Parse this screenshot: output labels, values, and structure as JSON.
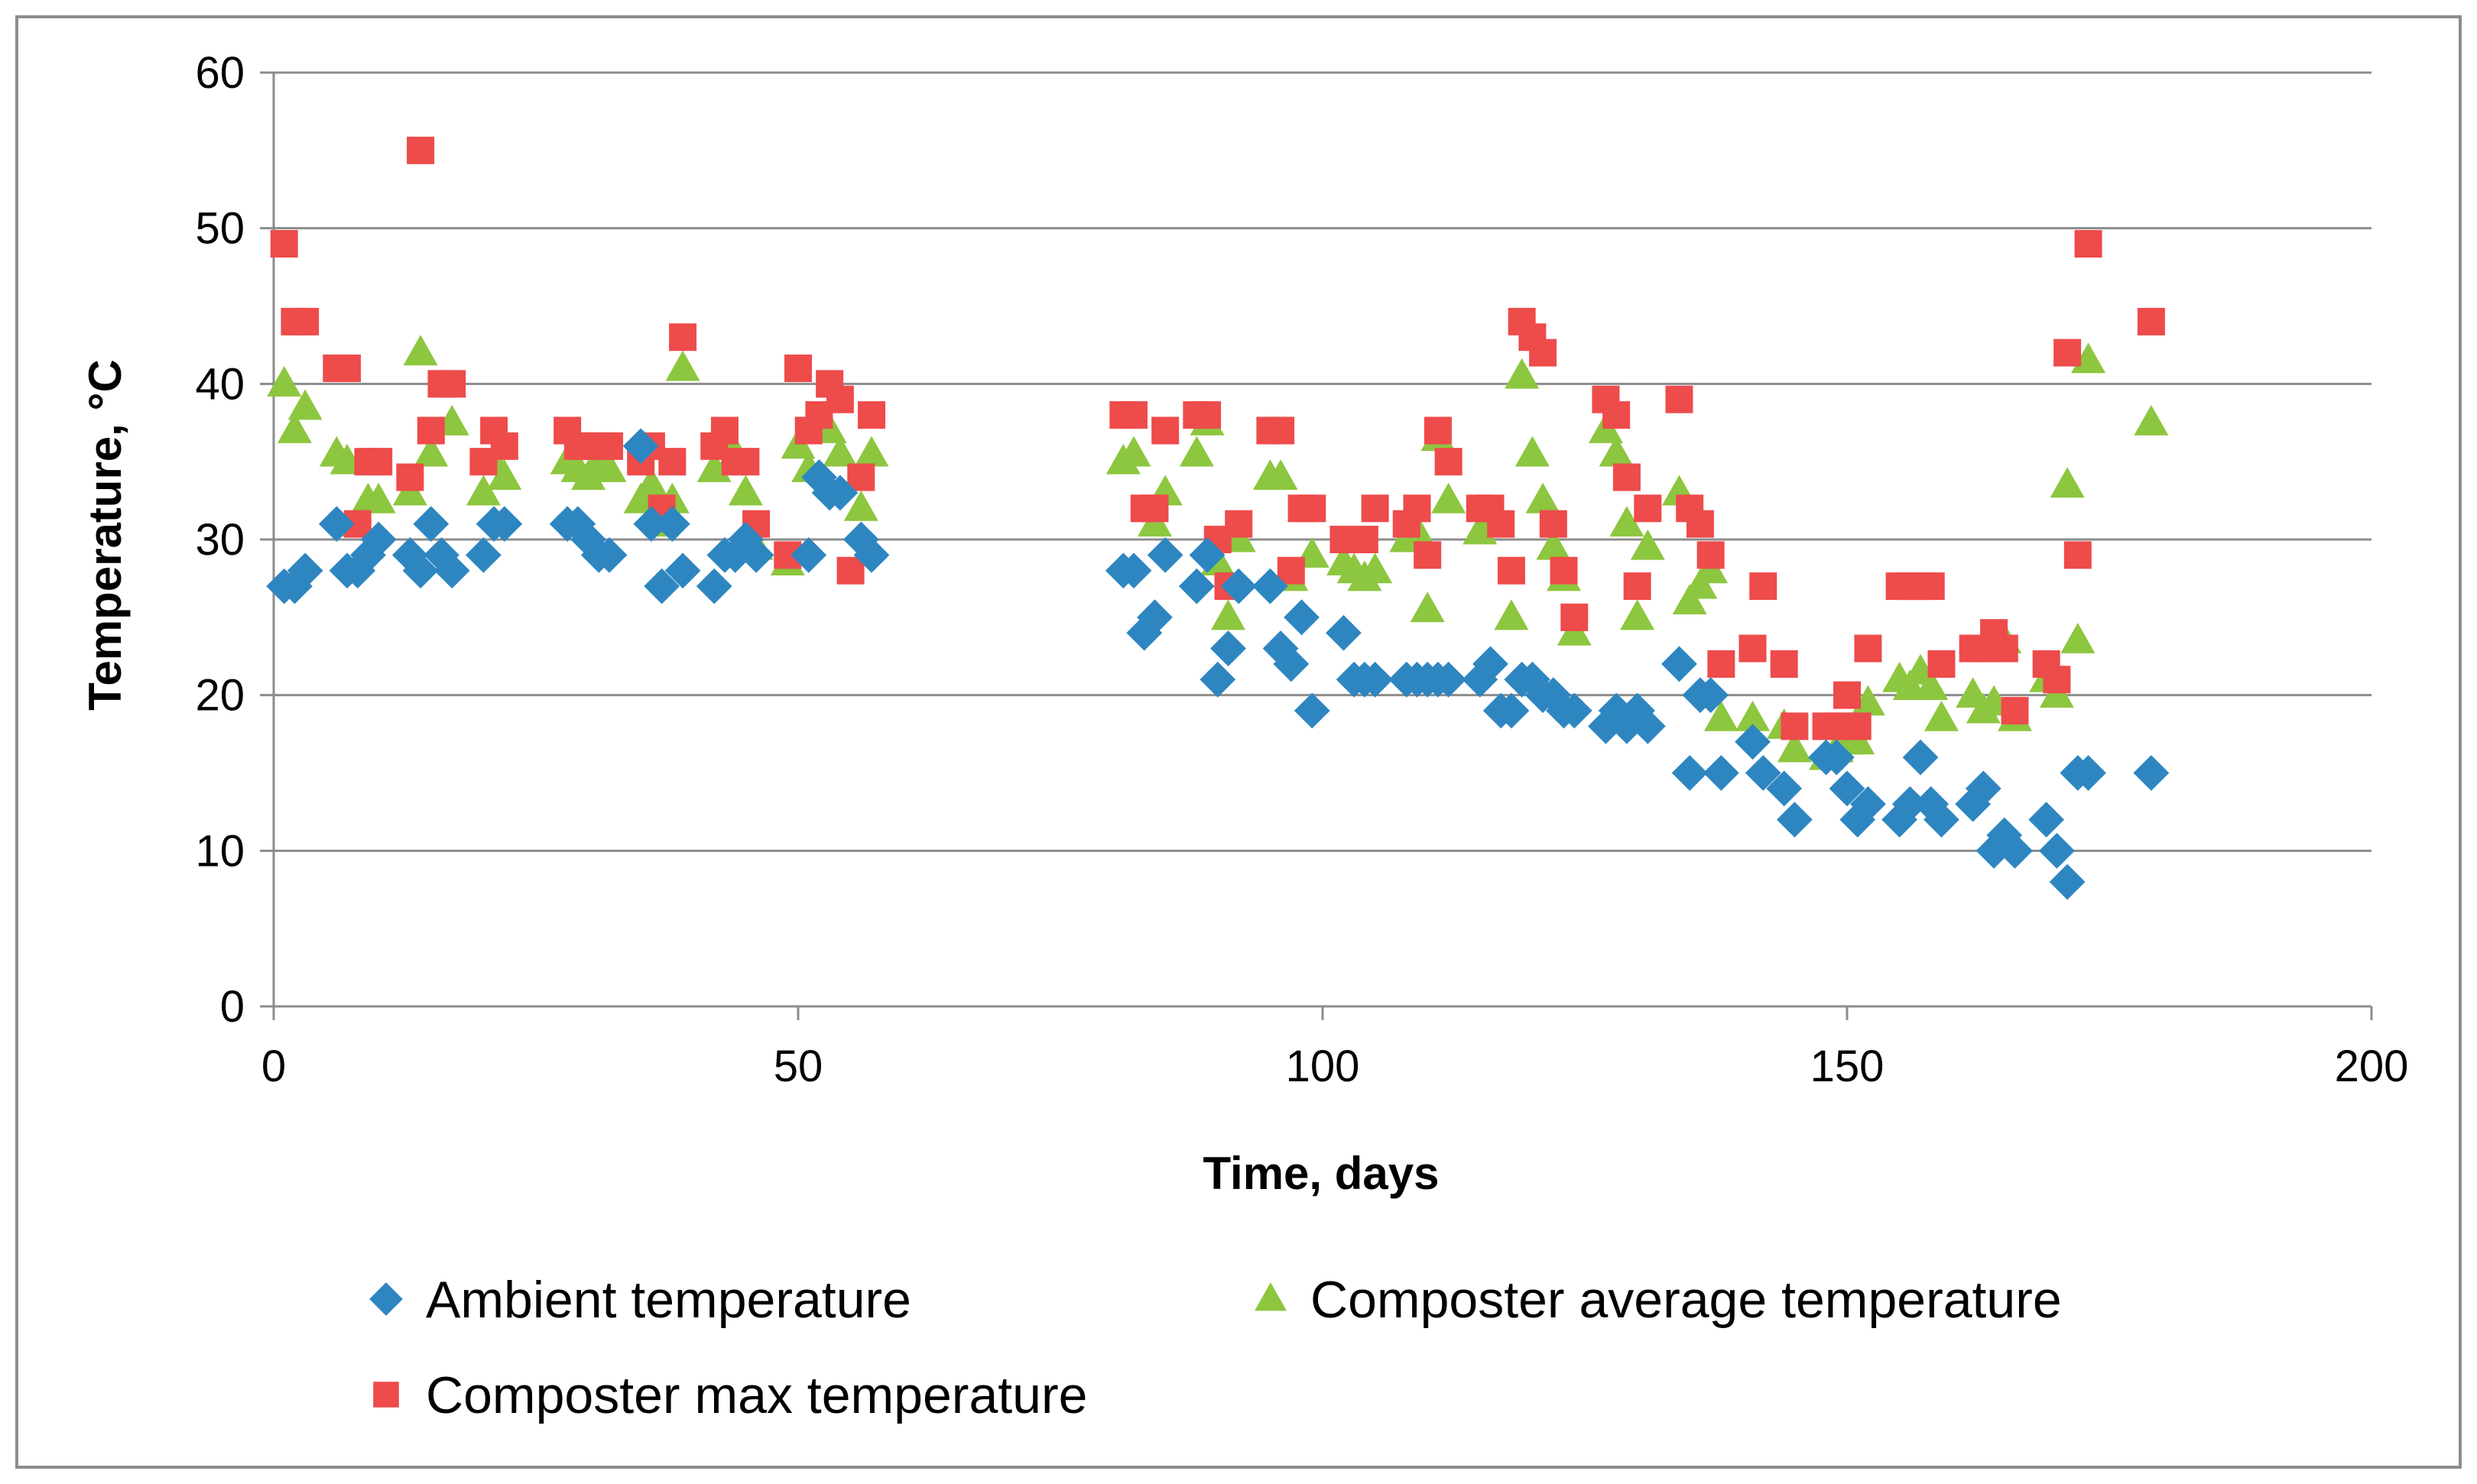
{
  "chart_data": {
    "type": "scatter",
    "xlabel": "Time, days",
    "ylabel": "Temperature, °C",
    "xlim": [
      0,
      200
    ],
    "ylim": [
      0,
      60
    ],
    "x_ticks": [
      0,
      50,
      100,
      150,
      200
    ],
    "y_ticks": [
      0,
      10,
      20,
      30,
      40,
      50,
      60
    ],
    "grid": "horizontal",
    "legend_position": "bottom",
    "series": [
      {
        "name": "Ambient temperature",
        "marker": "diamond",
        "color": "#2E86C1",
        "points": [
          [
            1,
            27
          ],
          [
            2,
            27
          ],
          [
            3,
            28
          ],
          [
            6,
            31
          ],
          [
            7,
            28
          ],
          [
            8,
            28
          ],
          [
            9,
            29
          ],
          [
            10,
            30
          ],
          [
            13,
            29
          ],
          [
            14,
            28
          ],
          [
            15,
            31
          ],
          [
            16,
            29
          ],
          [
            17,
            28
          ],
          [
            20,
            29
          ],
          [
            21,
            31
          ],
          [
            22,
            31
          ],
          [
            28,
            31
          ],
          [
            29,
            31
          ],
          [
            30,
            30
          ],
          [
            31,
            29
          ],
          [
            32,
            29
          ],
          [
            35,
            36
          ],
          [
            36,
            31
          ],
          [
            37,
            27
          ],
          [
            38,
            31
          ],
          [
            39,
            28
          ],
          [
            42,
            27
          ],
          [
            43,
            29
          ],
          [
            44,
            29
          ],
          [
            45,
            30
          ],
          [
            46,
            29
          ],
          [
            51,
            29
          ],
          [
            52,
            34
          ],
          [
            53,
            33
          ],
          [
            54,
            33
          ],
          [
            56,
            30
          ],
          [
            57,
            29
          ],
          [
            81,
            28
          ],
          [
            82,
            28
          ],
          [
            83,
            24
          ],
          [
            84,
            25
          ],
          [
            85,
            29
          ],
          [
            88,
            27
          ],
          [
            89,
            29
          ],
          [
            90,
            21
          ],
          [
            91,
            23
          ],
          [
            92,
            27
          ],
          [
            95,
            27
          ],
          [
            96,
            23
          ],
          [
            97,
            22
          ],
          [
            98,
            25
          ],
          [
            99,
            19
          ],
          [
            102,
            24
          ],
          [
            103,
            21
          ],
          [
            104,
            21
          ],
          [
            105,
            21
          ],
          [
            108,
            21
          ],
          [
            109,
            21
          ],
          [
            110,
            21
          ],
          [
            111,
            21
          ],
          [
            112,
            21
          ],
          [
            115,
            21
          ],
          [
            116,
            22
          ],
          [
            117,
            19
          ],
          [
            118,
            19
          ],
          [
            119,
            21
          ],
          [
            120,
            21
          ],
          [
            121,
            20
          ],
          [
            122,
            20
          ],
          [
            123,
            19
          ],
          [
            124,
            19
          ],
          [
            127,
            18
          ],
          [
            128,
            19
          ],
          [
            129,
            18
          ],
          [
            130,
            19
          ],
          [
            131,
            18
          ],
          [
            134,
            22
          ],
          [
            135,
            15
          ],
          [
            136,
            20
          ],
          [
            137,
            20
          ],
          [
            138,
            15
          ],
          [
            141,
            17
          ],
          [
            142,
            15
          ],
          [
            144,
            14
          ],
          [
            145,
            12
          ],
          [
            148,
            16
          ],
          [
            149,
            16
          ],
          [
            150,
            14
          ],
          [
            151,
            12
          ],
          [
            152,
            13
          ],
          [
            155,
            12
          ],
          [
            156,
            13
          ],
          [
            157,
            16
          ],
          [
            158,
            13
          ],
          [
            159,
            12
          ],
          [
            162,
            13
          ],
          [
            163,
            14
          ],
          [
            164,
            10
          ],
          [
            165,
            11
          ],
          [
            166,
            10
          ],
          [
            169,
            12
          ],
          [
            170,
            10
          ],
          [
            171,
            8
          ],
          [
            172,
            15
          ],
          [
            173,
            15
          ],
          [
            179,
            15
          ]
        ]
      },
      {
        "name": "Composter average temperature",
        "marker": "triangle",
        "color": "#8DC63F",
        "points": [
          [
            1,
            40
          ],
          [
            2,
            37
          ],
          [
            3,
            38.5
          ],
          [
            6,
            35.5
          ],
          [
            7,
            35
          ],
          [
            8,
            31
          ],
          [
            9,
            32.5
          ],
          [
            10,
            32.5
          ],
          [
            13,
            33
          ],
          [
            14,
            42
          ],
          [
            15,
            35.5
          ],
          [
            17,
            37.5
          ],
          [
            20,
            33
          ],
          [
            21,
            35
          ],
          [
            22,
            34
          ],
          [
            28,
            35
          ],
          [
            29,
            34.5
          ],
          [
            30,
            34
          ],
          [
            31,
            35
          ],
          [
            32,
            34.5
          ],
          [
            35,
            32.5
          ],
          [
            36,
            33.5
          ],
          [
            37,
            31
          ],
          [
            38,
            32.5
          ],
          [
            39,
            41
          ],
          [
            42,
            34.5
          ],
          [
            43,
            36
          ],
          [
            44,
            35.5
          ],
          [
            45,
            33
          ],
          [
            46,
            29.5
          ],
          [
            49,
            28.5
          ],
          [
            50,
            36
          ],
          [
            51,
            34.5
          ],
          [
            53,
            37
          ],
          [
            54,
            35.5
          ],
          [
            56,
            32
          ],
          [
            57,
            35.5
          ],
          [
            81,
            35
          ],
          [
            82,
            35.5
          ],
          [
            84,
            31
          ],
          [
            85,
            33
          ],
          [
            88,
            35.5
          ],
          [
            89,
            37.5
          ],
          [
            90,
            28.5
          ],
          [
            91,
            25
          ],
          [
            92,
            30
          ],
          [
            95,
            34
          ],
          [
            96,
            34
          ],
          [
            97,
            27.5
          ],
          [
            99,
            29
          ],
          [
            102,
            28.5
          ],
          [
            103,
            28
          ],
          [
            104,
            27.5
          ],
          [
            105,
            28
          ],
          [
            108,
            30
          ],
          [
            109,
            30.5
          ],
          [
            110,
            25.5
          ],
          [
            111,
            36.5
          ],
          [
            112,
            32.5
          ],
          [
            115,
            30.5
          ],
          [
            116,
            31
          ],
          [
            118,
            25
          ],
          [
            119,
            40.5
          ],
          [
            120,
            35.5
          ],
          [
            121,
            32.5
          ],
          [
            122,
            29.5
          ],
          [
            123,
            27.5
          ],
          [
            124,
            24
          ],
          [
            127,
            37
          ],
          [
            128,
            35.5
          ],
          [
            129,
            31
          ],
          [
            130,
            25
          ],
          [
            131,
            29.5
          ],
          [
            134,
            33
          ],
          [
            135,
            26
          ],
          [
            136,
            27
          ],
          [
            137,
            28
          ],
          [
            138,
            18.5
          ],
          [
            141,
            18.5
          ],
          [
            144,
            18
          ],
          [
            145,
            16.5
          ],
          [
            148,
            16
          ],
          [
            149,
            16.5
          ],
          [
            150,
            17
          ],
          [
            151,
            17
          ],
          [
            152,
            19.5
          ],
          [
            155,
            21
          ],
          [
            156,
            20.5
          ],
          [
            157,
            21.5
          ],
          [
            158,
            20.5
          ],
          [
            159,
            18.5
          ],
          [
            162,
            20
          ],
          [
            163,
            19
          ],
          [
            164,
            19.5
          ],
          [
            165,
            23.5
          ],
          [
            166,
            18.5
          ],
          [
            169,
            21
          ],
          [
            170,
            20
          ],
          [
            171,
            33.5
          ],
          [
            172,
            23.5
          ],
          [
            173,
            41.5
          ],
          [
            179,
            37.5
          ]
        ]
      },
      {
        "name": "Composter max temperature",
        "marker": "square",
        "color": "#EE4B4B",
        "points": [
          [
            1,
            49
          ],
          [
            2,
            44
          ],
          [
            3,
            44
          ],
          [
            6,
            41
          ],
          [
            7,
            41
          ],
          [
            8,
            31
          ],
          [
            9,
            35
          ],
          [
            10,
            35
          ],
          [
            13,
            34
          ],
          [
            14,
            55
          ],
          [
            15,
            37
          ],
          [
            16,
            40
          ],
          [
            17,
            40
          ],
          [
            20,
            35
          ],
          [
            21,
            37
          ],
          [
            22,
            36
          ],
          [
            28,
            37
          ],
          [
            29,
            36
          ],
          [
            30,
            36
          ],
          [
            31,
            36
          ],
          [
            32,
            36
          ],
          [
            35,
            35
          ],
          [
            36,
            36
          ],
          [
            37,
            32
          ],
          [
            38,
            35
          ],
          [
            39,
            43
          ],
          [
            42,
            36
          ],
          [
            43,
            37
          ],
          [
            44,
            35
          ],
          [
            45,
            35
          ],
          [
            46,
            31
          ],
          [
            49,
            29
          ],
          [
            50,
            41
          ],
          [
            51,
            37
          ],
          [
            52,
            38
          ],
          [
            53,
            40
          ],
          [
            54,
            39
          ],
          [
            55,
            28
          ],
          [
            56,
            34
          ],
          [
            57,
            38
          ],
          [
            81,
            38
          ],
          [
            82,
            38
          ],
          [
            83,
            32
          ],
          [
            84,
            32
          ],
          [
            85,
            37
          ],
          [
            88,
            38
          ],
          [
            89,
            38
          ],
          [
            90,
            30
          ],
          [
            91,
            27
          ],
          [
            92,
            31
          ],
          [
            95,
            37
          ],
          [
            96,
            37
          ],
          [
            97,
            28
          ],
          [
            98,
            32
          ],
          [
            99,
            32
          ],
          [
            102,
            30
          ],
          [
            103,
            30
          ],
          [
            104,
            30
          ],
          [
            105,
            32
          ],
          [
            108,
            31
          ],
          [
            109,
            32
          ],
          [
            110,
            29
          ],
          [
            111,
            37
          ],
          [
            112,
            35
          ],
          [
            115,
            32
          ],
          [
            116,
            32
          ],
          [
            117,
            31
          ],
          [
            118,
            28
          ],
          [
            119,
            44
          ],
          [
            120,
            43
          ],
          [
            121,
            42
          ],
          [
            122,
            31
          ],
          [
            123,
            28
          ],
          [
            124,
            25
          ],
          [
            127,
            39
          ],
          [
            128,
            38
          ],
          [
            129,
            34
          ],
          [
            130,
            27
          ],
          [
            131,
            32
          ],
          [
            134,
            39
          ],
          [
            135,
            32
          ],
          [
            136,
            31
          ],
          [
            137,
            29
          ],
          [
            138,
            22
          ],
          [
            141,
            23
          ],
          [
            142,
            27
          ],
          [
            144,
            22
          ],
          [
            145,
            18
          ],
          [
            148,
            18
          ],
          [
            149,
            18
          ],
          [
            150,
            20
          ],
          [
            151,
            18
          ],
          [
            152,
            23
          ],
          [
            155,
            27
          ],
          [
            156,
            27
          ],
          [
            157,
            27
          ],
          [
            158,
            27
          ],
          [
            159,
            22
          ],
          [
            162,
            23
          ],
          [
            163,
            23
          ],
          [
            164,
            24
          ],
          [
            165,
            23
          ],
          [
            166,
            19
          ],
          [
            169,
            22
          ],
          [
            170,
            21
          ],
          [
            171,
            42
          ],
          [
            172,
            29
          ],
          [
            173,
            49
          ],
          [
            179,
            44
          ]
        ]
      }
    ]
  }
}
